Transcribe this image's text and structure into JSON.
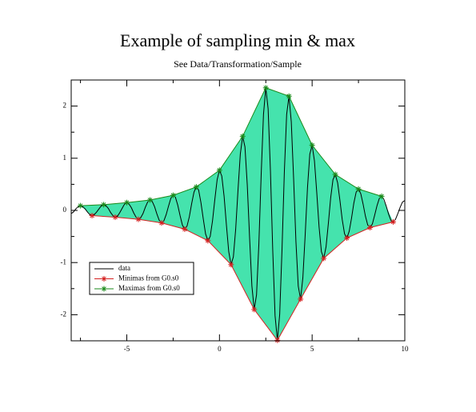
{
  "chart_data": {
    "type": "line",
    "title": "Example of sampling min & max",
    "subtitle": "See Data/Transformation/Sample",
    "xlim": [
      -8,
      10
    ],
    "ylim": [
      -2.5,
      2.5
    ],
    "xticks": [
      -5,
      0,
      5,
      10
    ],
    "yticks": [
      -2,
      -1,
      0,
      1,
      2
    ],
    "xminor_ticks": [
      -7.5,
      -2.5,
      2.5,
      7.5
    ],
    "yminor_ticks": [
      -1.5,
      -0.5,
      0.5,
      1.5
    ],
    "legend": "lower left",
    "fill_color": "#45e3ad",
    "series": [
      {
        "name": "data",
        "color": "#000000",
        "marker": false,
        "x": [
          -8,
          -7.875,
          -7.75,
          -7.625,
          -7.5,
          -7.375,
          -7.25,
          -7.125,
          -7,
          -6.875,
          -6.75,
          -6.625,
          -6.5,
          -6.375,
          -6.25,
          -6.125,
          -6,
          -5.875,
          -5.75,
          -5.625,
          -5.5,
          -5.375,
          -5.25,
          -5.125,
          -5,
          -4.875,
          -4.75,
          -4.625,
          -4.5,
          -4.375,
          -4.25,
          -4.125,
          -4,
          -3.875,
          -3.75,
          -3.625,
          -3.5,
          -3.375,
          -3.25,
          -3.125,
          -3,
          -2.875,
          -2.75,
          -2.625,
          -2.5,
          -2.375,
          -2.25,
          -2.125,
          -2,
          -1.875,
          -1.75,
          -1.625,
          -1.5,
          -1.375,
          -1.25,
          -1.125,
          -1,
          -0.875,
          -0.75,
          -0.625,
          -0.5,
          -0.375,
          -0.25,
          -0.125,
          0,
          0.125,
          0.25,
          0.375,
          0.5,
          0.625,
          0.75,
          0.875,
          1,
          1.125,
          1.25,
          1.375,
          1.5,
          1.625,
          1.75,
          1.875,
          2,
          2.125,
          2.25,
          2.375,
          2.5,
          2.625,
          2.75,
          2.875,
          3,
          3.125,
          3.25,
          3.375,
          3.5,
          3.625,
          3.75,
          3.875,
          4,
          4.125,
          4.25,
          4.375,
          4.5,
          4.625,
          4.75,
          4.875,
          5,
          5.125,
          5.25,
          5.375,
          5.5,
          5.625,
          5.75,
          5.875,
          6,
          6.125,
          6.25,
          6.375,
          6.5,
          6.625,
          6.75,
          6.875,
          7,
          7.125,
          7.25,
          7.375,
          7.5,
          7.625,
          7.75,
          7.875,
          8,
          8.125,
          8.25,
          8.375,
          8.5,
          8.625,
          8.75,
          8.875,
          9,
          9.125,
          9.25,
          9.375,
          9.5,
          9.625,
          9.75,
          9.875,
          10
        ],
        "values": [
          -0.06,
          -0.03,
          0.03,
          0.07,
          0.09,
          0.07,
          0.03,
          -0.03,
          -0.08,
          -0.1,
          -0.08,
          -0.03,
          0.03,
          0.09,
          0.11,
          0.09,
          0.04,
          -0.04,
          -0.1,
          -0.13,
          -0.11,
          -0.04,
          0.04,
          0.12,
          0.15,
          0.12,
          0.05,
          -0.05,
          -0.13,
          -0.17,
          -0.14,
          -0.06,
          0.06,
          0.16,
          0.2,
          0.17,
          0.07,
          -0.07,
          -0.19,
          -0.24,
          -0.2,
          -0.08,
          0.08,
          0.23,
          0.29,
          0.25,
          0.1,
          -0.1,
          -0.28,
          -0.36,
          -0.3,
          -0.12,
          0.13,
          0.35,
          0.45,
          0.39,
          0.15,
          -0.16,
          -0.45,
          -0.58,
          -0.5,
          -0.2,
          0.21,
          0.59,
          0.77,
          0.66,
          0.27,
          -0.28,
          -0.79,
          -1.04,
          -0.89,
          -0.36,
          0.39,
          1.08,
          1.42,
          1.22,
          0.49,
          -0.52,
          -1.45,
          -1.9,
          -1.62,
          -0.65,
          0.68,
          1.84,
          2.35,
          1.95,
          0.76,
          -0.77,
          -2.02,
          -2.49,
          -1.99,
          -0.75,
          0.73,
          1.84,
          2.19,
          1.7,
          0.62,
          -0.59,
          -1.45,
          -1.7,
          -1.29,
          -0.47,
          0.44,
          1.08,
          1.25,
          0.95,
          0.34,
          -0.32,
          -0.79,
          -0.92,
          -0.7,
          -0.25,
          0.24,
          0.59,
          0.69,
          0.53,
          0.19,
          -0.18,
          -0.45,
          -0.53,
          -0.4,
          -0.15,
          0.14,
          0.35,
          0.41,
          0.32,
          0.12,
          -0.11,
          -0.28,
          -0.33,
          -0.26,
          -0.09,
          0.09,
          0.23,
          0.27,
          0.21,
          0.08,
          -0.07,
          -0.19,
          -0.22,
          -0.17,
          -0.06,
          0.06,
          0.16,
          0.19
        ]
      },
      {
        "name": "Minimas from G0.s0",
        "color": "#d42020",
        "marker": true,
        "x": [
          -6.875,
          -5.625,
          -4.375,
          -3.125,
          -1.875,
          -0.625,
          0.625,
          1.875,
          3.125,
          4.375,
          5.625,
          6.875,
          8.125,
          9.375
        ],
        "values": [
          -0.1,
          -0.13,
          -0.17,
          -0.24,
          -0.36,
          -0.58,
          -1.04,
          -1.9,
          -2.49,
          -1.7,
          -0.92,
          -0.53,
          -0.33,
          -0.22
        ]
      },
      {
        "name": "Maximas from G0.s0",
        "color": "#1a8a1a",
        "marker": true,
        "x": [
          -7.5,
          -6.25,
          -5,
          -3.75,
          -2.5,
          -1.25,
          0,
          1.25,
          2.5,
          3.75,
          5,
          6.25,
          7.5,
          8.75
        ],
        "values": [
          0.09,
          0.11,
          0.15,
          0.2,
          0.29,
          0.45,
          0.77,
          1.42,
          2.35,
          2.19,
          1.25,
          0.69,
          0.41,
          0.27
        ]
      }
    ]
  }
}
